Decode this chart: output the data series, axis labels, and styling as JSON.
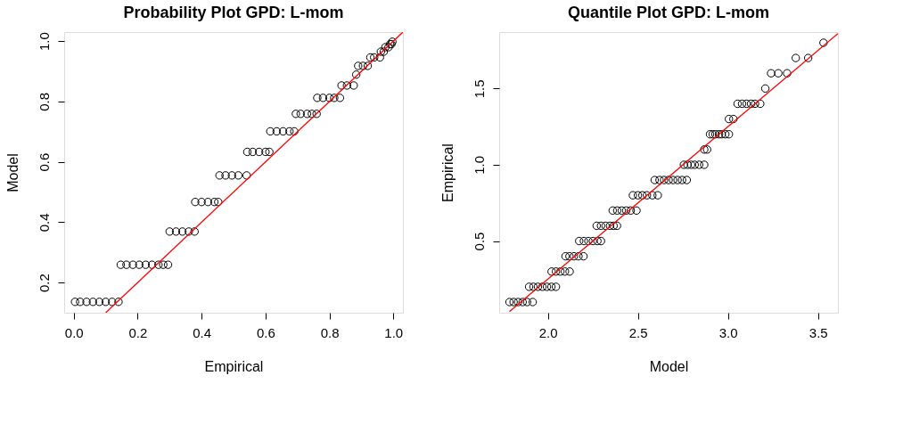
{
  "chart_data": [
    {
      "type": "scatter",
      "title": "Probability Plot GPD: L-mom",
      "xlabel": "Empirical",
      "ylabel": "Model",
      "xlim": [
        -0.03,
        1.03
      ],
      "ylim": [
        0.1,
        1.03
      ],
      "xticks": [
        {
          "value": 0,
          "label": "0.0"
        },
        {
          "value": 0.2,
          "label": "0.2"
        },
        {
          "value": 0.4,
          "label": "0.4"
        },
        {
          "value": 0.6,
          "label": "0.6"
        },
        {
          "value": 0.8,
          "label": "0.8"
        },
        {
          "value": 1,
          "label": "1.0"
        }
      ],
      "yticks": [
        {
          "value": 0.2,
          "label": "0.2"
        },
        {
          "value": 0.4,
          "label": "0.4"
        },
        {
          "value": 0.6,
          "label": "0.6"
        },
        {
          "value": 0.8,
          "label": "0.8"
        },
        {
          "value": 1,
          "label": "1.0"
        }
      ],
      "series": [
        {
          "color": "#000000",
          "marker": "circle",
          "x": [
            0.004,
            0.02,
            0.04,
            0.06,
            0.08,
            0.1,
            0.12,
            0.14,
            0.147,
            0.165,
            0.185,
            0.205,
            0.225,
            0.245,
            0.265,
            0.28,
            0.295,
            0.3,
            0.32,
            0.34,
            0.36,
            0.378,
            0.38,
            0.4,
            0.42,
            0.44,
            0.452,
            0.456,
            0.475,
            0.495,
            0.515,
            0.541,
            0.543,
            0.56,
            0.58,
            0.6,
            0.612,
            0.615,
            0.635,
            0.655,
            0.675,
            0.69,
            0.695,
            0.71,
            0.73,
            0.745,
            0.76,
            0.762,
            0.78,
            0.8,
            0.815,
            0.833,
            0.838,
            0.855,
            0.876,
            0.884,
            0.89,
            0.905,
            0.92,
            0.928,
            0.94,
            0.958,
            0.961,
            0.97,
            0.975,
            0.985,
            0.99,
            0.994,
            0.997
          ],
          "values": [
            0.136,
            0.136,
            0.136,
            0.136,
            0.136,
            0.136,
            0.136,
            0.136,
            0.259,
            0.259,
            0.259,
            0.259,
            0.259,
            0.259,
            0.259,
            0.259,
            0.259,
            0.369,
            0.369,
            0.369,
            0.369,
            0.369,
            0.467,
            0.467,
            0.467,
            0.467,
            0.467,
            0.555,
            0.555,
            0.555,
            0.555,
            0.555,
            0.633,
            0.633,
            0.633,
            0.633,
            0.633,
            0.701,
            0.701,
            0.701,
            0.701,
            0.701,
            0.759,
            0.759,
            0.759,
            0.759,
            0.759,
            0.812,
            0.812,
            0.812,
            0.812,
            0.812,
            0.853,
            0.853,
            0.853,
            0.889,
            0.918,
            0.918,
            0.918,
            0.946,
            0.946,
            0.946,
            0.965,
            0.965,
            0.98,
            0.98,
            0.99,
            0.99,
            0.998
          ]
        },
        {
          "type": "line",
          "color": "#ff0000",
          "marker": "none",
          "line_style": "solid",
          "x": [
            0.1,
            1.03
          ],
          "values": [
            0.1,
            1.03
          ]
        }
      ]
    },
    {
      "type": "scatter",
      "title": "Quantile Plot GPD: L-mom",
      "xlabel": "Model",
      "ylabel": "Empirical",
      "xlim": [
        1.73,
        3.61
      ],
      "ylim": [
        0.03,
        1.87
      ],
      "xticks": [
        {
          "value": 2,
          "label": "2.0"
        },
        {
          "value": 2.5,
          "label": "2.5"
        },
        {
          "value": 3,
          "label": "3.0"
        },
        {
          "value": 3.5,
          "label": "3.5"
        }
      ],
      "yticks": [
        0.5,
        {
          "value": 1,
          "label": "1.0"
        },
        1.5
      ],
      "series": [
        {
          "color": "#000000",
          "marker": "circle",
          "x": [
            1.787,
            1.81,
            1.835,
            1.86,
            1.885,
            1.916,
            1.896,
            1.92,
            1.945,
            1.97,
            1.995,
            2.02,
            2.045,
            2.021,
            2.045,
            2.07,
            2.095,
            2.121,
            2.098,
            2.12,
            2.145,
            2.17,
            2.198,
            2.174,
            2.2,
            2.225,
            2.25,
            2.275,
            2.295,
            2.271,
            2.295,
            2.32,
            2.345,
            2.365,
            2.384,
            2.36,
            2.385,
            2.41,
            2.435,
            2.46,
            2.492,
            2.472,
            2.5,
            2.525,
            2.55,
            2.58,
            2.61,
            2.593,
            2.62,
            2.645,
            2.67,
            2.695,
            2.72,
            2.745,
            2.771,
            2.755,
            2.775,
            2.795,
            2.815,
            2.84,
            2.868,
            2.868,
            2.884,
            2.9,
            2.915,
            2.93,
            2.95,
            2.965,
            2.985,
            3.005,
            3.005,
            3.03,
            3.053,
            3.078,
            3.103,
            3.128,
            3.15,
            3.179,
            3.207,
            3.239,
            3.279,
            3.328,
            3.376,
            3.445,
            3.53
          ],
          "values": [
            0.1,
            0.1,
            0.1,
            0.1,
            0.1,
            0.1,
            0.2,
            0.2,
            0.2,
            0.2,
            0.2,
            0.2,
            0.2,
            0.3,
            0.3,
            0.3,
            0.3,
            0.3,
            0.4,
            0.4,
            0.4,
            0.4,
            0.4,
            0.5,
            0.5,
            0.5,
            0.5,
            0.5,
            0.5,
            0.6,
            0.6,
            0.6,
            0.6,
            0.6,
            0.6,
            0.7,
            0.7,
            0.7,
            0.7,
            0.7,
            0.7,
            0.8,
            0.8,
            0.8,
            0.8,
            0.8,
            0.8,
            0.9,
            0.9,
            0.9,
            0.9,
            0.9,
            0.9,
            0.9,
            0.9,
            1.0,
            1.0,
            1.0,
            1.0,
            1.0,
            1.0,
            1.1,
            1.1,
            1.2,
            1.2,
            1.2,
            1.2,
            1.2,
            1.2,
            1.2,
            1.3,
            1.3,
            1.4,
            1.4,
            1.4,
            1.4,
            1.4,
            1.4,
            1.5,
            1.6,
            1.6,
            1.6,
            1.7,
            1.7,
            1.8
          ]
        },
        {
          "type": "line",
          "color": "#ff0000",
          "marker": "none",
          "line_style": "solid",
          "x": [
            1.787,
            3.61
          ],
          "values": [
            0.037,
            1.86
          ]
        }
      ]
    }
  ]
}
